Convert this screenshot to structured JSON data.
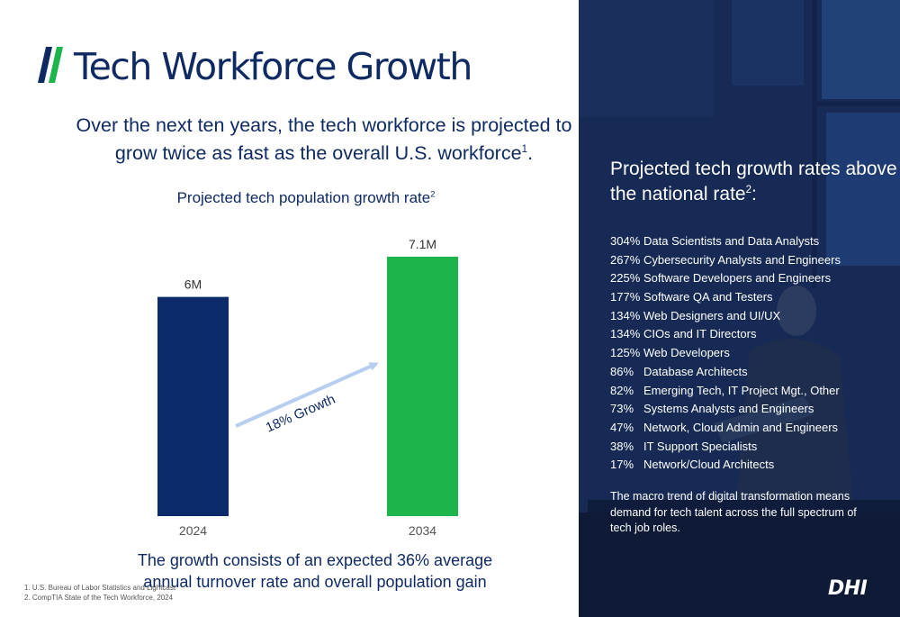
{
  "slide": {
    "title": "Tech Workforce Growth",
    "subtitle": "Over the next ten years, the tech workforce is projected to grow twice as fast as the overall U.S. workforce",
    "subtitle_sup": "1",
    "chart_caption": "Projected tech population growth rate",
    "chart_caption_sup": "2",
    "growth_arrow_label": "18% Growth",
    "bottom_note": "The growth consists of an expected 36% average annual turnover rate and overall population gain",
    "footnotes": [
      "1. U.S. Bureau of Labor Statistics and Lightcast",
      "2. CompTIA State of the Tech Workforce, 2024"
    ]
  },
  "chart_data": {
    "type": "bar",
    "title": "Projected tech population growth rate",
    "categories": [
      "2024",
      "2034"
    ],
    "values": [
      6.0,
      7.1
    ],
    "value_labels": [
      "6M",
      "7.1M"
    ],
    "units": "millions",
    "colors": [
      "#0d2a6b",
      "#1cb44b"
    ],
    "annotation": "18% Growth",
    "ylim": [
      0,
      7.1
    ],
    "grid": false,
    "legend": "none"
  },
  "side_panel": {
    "heading": "Projected tech growth rates above the national rate",
    "heading_sup": "2",
    "heading_suffix": ":",
    "rates": [
      {
        "pct": "304%",
        "role": "Data Scientists and Data Analysts"
      },
      {
        "pct": "267%",
        "role": "Cybersecurity Analysts and Engineers"
      },
      {
        "pct": "225%",
        "role": "Software Developers and Engineers"
      },
      {
        "pct": "177%",
        "role": "Software QA and Testers"
      },
      {
        "pct": "134%",
        "role": "Web Designers and UI/UX"
      },
      {
        "pct": "134%",
        "role": "CIOs and IT Directors"
      },
      {
        "pct": "125%",
        "role": "Web Developers"
      },
      {
        "pct": "86%",
        "role": "Database Architects"
      },
      {
        "pct": "82%",
        "role": "Emerging Tech, IT Project Mgt., Other"
      },
      {
        "pct": "73%",
        "role": "Systems Analysts and Engineers"
      },
      {
        "pct": "47%",
        "role": "Network, Cloud Admin and Engineers"
      },
      {
        "pct": "38%",
        "role": "IT Support Specialists"
      },
      {
        "pct": "17%",
        "role": "Network/Cloud Architects"
      }
    ],
    "note": "The macro trend of digital transformation means demand for tech talent across the full spectrum of tech job roles.",
    "logo_text": "DHI"
  },
  "colors": {
    "navy": "#0f2a63",
    "bar_2024": "#0d2a6b",
    "bar_2034": "#1cb44b",
    "arrow": "#b8cef0",
    "brand_green": "#1cb44b",
    "panel_bg": "#16284f"
  }
}
